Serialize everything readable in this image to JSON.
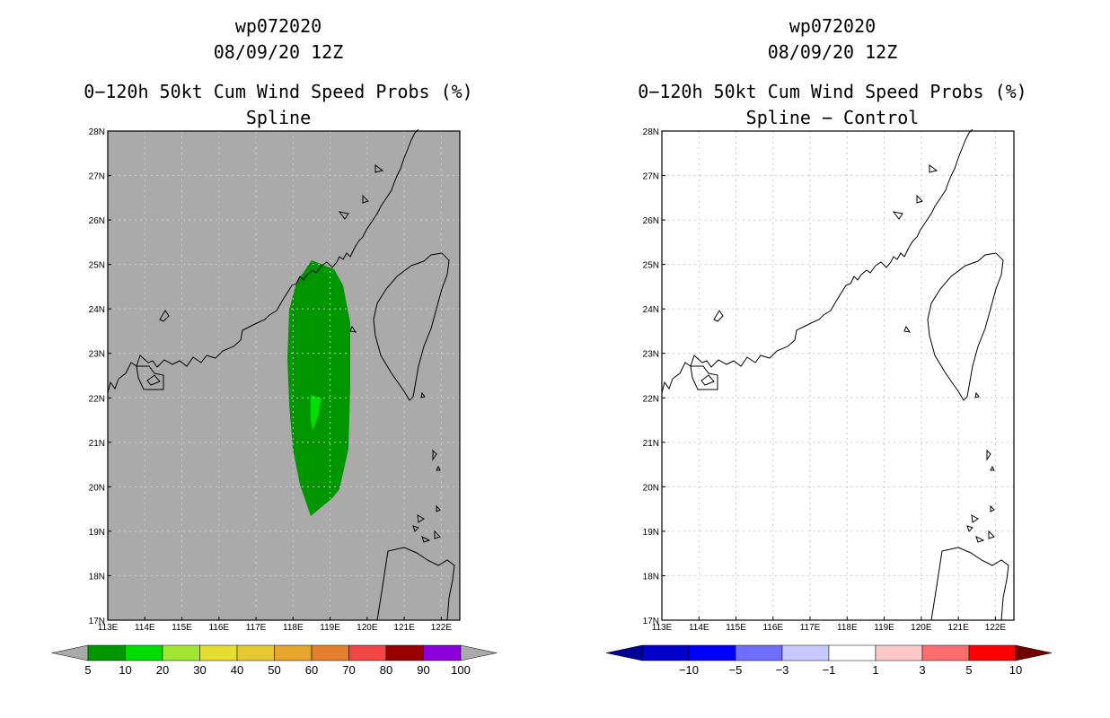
{
  "left_panel": {
    "storm_id": "wp072020",
    "date": "08/09/20 12Z",
    "product": "0−120h 50kt Cum Wind Speed Probs (%)",
    "subtitle": "Spline"
  },
  "right_panel": {
    "storm_id": "wp072020",
    "date": "08/09/20 12Z",
    "product": "0−120h 50kt Cum Wind Speed Probs (%)",
    "subtitle": "Spline − Control"
  },
  "axes": {
    "lon_ticks": [
      "113E",
      "114E",
      "115E",
      "116E",
      "117E",
      "118E",
      "119E",
      "120E",
      "121E",
      "122E"
    ],
    "lat_ticks": [
      "28N",
      "27N",
      "26N",
      "25N",
      "24N",
      "23N",
      "22N",
      "21N",
      "20N",
      "19N",
      "18N",
      "17N"
    ],
    "lon_range": [
      113,
      122.5
    ],
    "lat_range": [
      17,
      28
    ]
  },
  "probability_colorbar": {
    "labels": [
      "5",
      "10",
      "20",
      "30",
      "40",
      "50",
      "60",
      "70",
      "80",
      "90",
      "100"
    ],
    "colors": [
      "#009600",
      "#00dc00",
      "#a0e632",
      "#e6dc32",
      "#e6c832",
      "#e6a52d",
      "#e67f2d",
      "#f04646",
      "#990000",
      "#8c00dc"
    ],
    "under_color": "#aaaaaa",
    "over_color": "#aaaaaa"
  },
  "difference_colorbar": {
    "labels": [
      "−10",
      "−5",
      "−3",
      "−1",
      "1",
      "3",
      "5",
      "10"
    ],
    "colors": [
      "#0000c8",
      "#0000ff",
      "#6e6eff",
      "#c8c8ff",
      "#ffffff",
      "#ffc8c8",
      "#ff6e6e",
      "#ff0000"
    ],
    "under_color": "#000096",
    "over_color": "#700000"
  },
  "colors": {
    "background_prob": "#aaaaaa",
    "prob_5": "#009600",
    "prob_10": "#00dc00",
    "grid": "#c8c8c8"
  }
}
